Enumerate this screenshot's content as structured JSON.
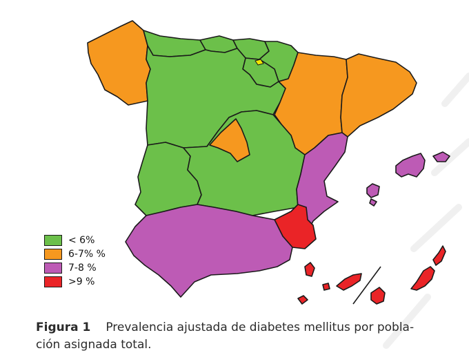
{
  "colors": {
    "low": "#6cc04a",
    "mid": "#f6981f",
    "high": "#bd5bb5",
    "veryhigh": "#ea2427",
    "border": "#1a1a1a",
    "watermark": "#f0f0f0"
  },
  "legend": [
    {
      "label": "< 6%",
      "color_key": "low"
    },
    {
      "label": "6-7% %",
      "color_key": "mid"
    },
    {
      "label": "7-8 %",
      "color_key": "high"
    },
    {
      "label": ">9 %",
      "color_key": "veryhigh"
    }
  ],
  "regions": [
    {
      "name": "Galicia",
      "category": "mid"
    },
    {
      "name": "Asturias",
      "category": "low"
    },
    {
      "name": "Cantabria",
      "category": "low"
    },
    {
      "name": "País Vasco",
      "category": "low"
    },
    {
      "name": "Navarra",
      "category": "low"
    },
    {
      "name": "La Rioja",
      "category": "low"
    },
    {
      "name": "Castilla y León",
      "category": "low"
    },
    {
      "name": "Aragón",
      "category": "mid"
    },
    {
      "name": "Cataluña",
      "category": "mid"
    },
    {
      "name": "Madrid",
      "category": "mid"
    },
    {
      "name": "Extremadura",
      "category": "low"
    },
    {
      "name": "Castilla-La Mancha",
      "category": "low"
    },
    {
      "name": "Comunidad Valenciana",
      "category": "high"
    },
    {
      "name": "Murcia",
      "category": "veryhigh"
    },
    {
      "name": "Andalucía",
      "category": "high"
    },
    {
      "name": "Islas Baleares",
      "category": "high"
    },
    {
      "name": "Canarias",
      "category": "veryhigh"
    }
  ],
  "caption": {
    "label": "Figura 1",
    "text": "Prevalencia ajustada de diabetes mellitus por pobla-ción asignada total."
  },
  "caption_lines": [
    "Prevalencia ajustada de diabetes mellitus por pobla-",
    "ción asignada total."
  ]
}
